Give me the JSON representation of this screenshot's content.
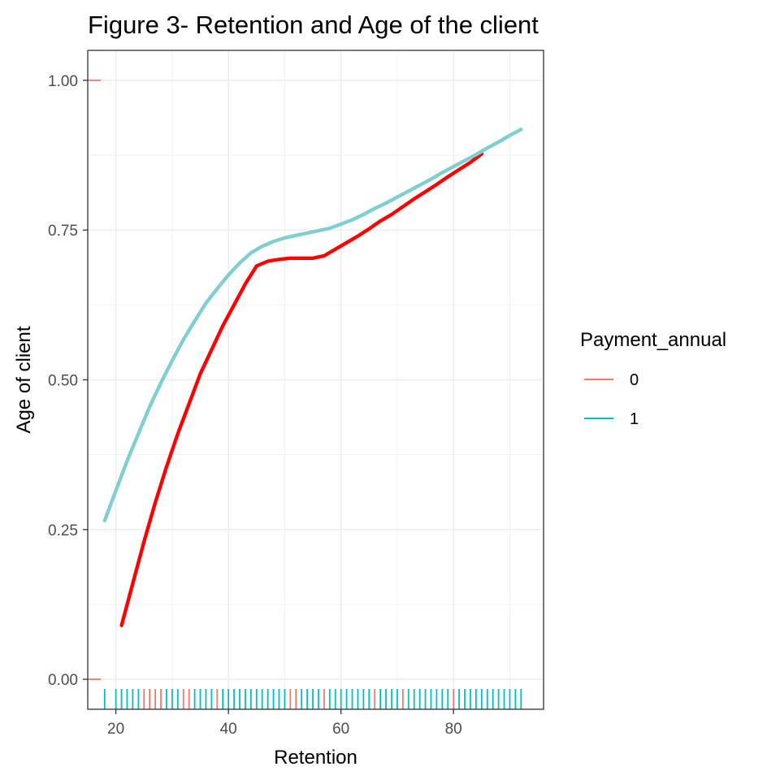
{
  "chart_data": {
    "type": "line",
    "title": "Figure 3- Retention and Age of the client",
    "xlabel": "Retention",
    "ylabel": "Age of client",
    "xlim": [
      15,
      96
    ],
    "ylim": [
      -0.05,
      1.05
    ],
    "x_ticks": [
      20,
      40,
      60,
      80
    ],
    "x_tick_labels": [
      "20",
      "40",
      "60",
      "80"
    ],
    "y_ticks": [
      0,
      0.25,
      0.5,
      0.75,
      1.0
    ],
    "y_tick_labels": [
      "0.00",
      "0.25",
      "0.50",
      "0.75",
      "1.00"
    ],
    "grid": true,
    "legend": {
      "title": "Payment_annual",
      "position": "right",
      "entries": [
        {
          "label": "0",
          "color": "#F8766D"
        },
        {
          "label": "1",
          "color": "#00BFC4"
        }
      ]
    },
    "series": [
      {
        "color": "#FF0000",
        "x": [
          21,
          23,
          25,
          27,
          29,
          31,
          33,
          35,
          37,
          39,
          41,
          43,
          45,
          47,
          49,
          51,
          53,
          55,
          57,
          59,
          61,
          63,
          65,
          67,
          69,
          71,
          73,
          75,
          77,
          79,
          81,
          83,
          85
        ],
        "y": [
          0.09,
          0.16,
          0.23,
          0.295,
          0.355,
          0.41,
          0.46,
          0.51,
          0.55,
          0.59,
          0.625,
          0.66,
          0.69,
          0.698,
          0.701,
          0.703,
          0.703,
          0.703,
          0.707,
          0.718,
          0.729,
          0.74,
          0.752,
          0.765,
          0.776,
          0.789,
          0.802,
          0.814,
          0.826,
          0.839,
          0.851,
          0.863,
          0.877
        ]
      },
      {
        "color": "#7FCFCF",
        "x": [
          18,
          20,
          22,
          24,
          26,
          28,
          30,
          32,
          34,
          36,
          38,
          40,
          42,
          44,
          46,
          48,
          50,
          52,
          54,
          56,
          58,
          60,
          62,
          64,
          66,
          68,
          70,
          72,
          74,
          76,
          78,
          80,
          82,
          84,
          86,
          88,
          90,
          92
        ],
        "y": [
          0.265,
          0.315,
          0.365,
          0.41,
          0.455,
          0.495,
          0.532,
          0.567,
          0.598,
          0.628,
          0.652,
          0.675,
          0.695,
          0.712,
          0.723,
          0.731,
          0.737,
          0.741,
          0.745,
          0.749,
          0.753,
          0.76,
          0.767,
          0.776,
          0.786,
          0.795,
          0.805,
          0.815,
          0.825,
          0.835,
          0.846,
          0.856,
          0.866,
          0.876,
          0.887,
          0.897,
          0.908,
          0.918
        ]
      }
    ],
    "rug_x": [
      {
        "x": 18,
        "g": "1"
      },
      {
        "x": 20,
        "g": "1"
      },
      {
        "x": 21,
        "g": "1"
      },
      {
        "x": 22,
        "g": "1"
      },
      {
        "x": 23,
        "g": "1"
      },
      {
        "x": 24,
        "g": "1"
      },
      {
        "x": 25,
        "g": "0"
      },
      {
        "x": 26,
        "g": "0"
      },
      {
        "x": 27,
        "g": "0"
      },
      {
        "x": 28,
        "g": "0"
      },
      {
        "x": 29,
        "g": "1"
      },
      {
        "x": 30,
        "g": "1"
      },
      {
        "x": 31,
        "g": "1"
      },
      {
        "x": 32,
        "g": "0"
      },
      {
        "x": 33,
        "g": "0"
      },
      {
        "x": 34,
        "g": "1"
      },
      {
        "x": 35,
        "g": "1"
      },
      {
        "x": 36,
        "g": "1"
      },
      {
        "x": 37,
        "g": "1"
      },
      {
        "x": 38,
        "g": "0"
      },
      {
        "x": 39,
        "g": "1"
      },
      {
        "x": 40,
        "g": "1"
      },
      {
        "x": 41,
        "g": "1"
      },
      {
        "x": 42,
        "g": "1"
      },
      {
        "x": 43,
        "g": "1"
      },
      {
        "x": 44,
        "g": "1"
      },
      {
        "x": 45,
        "g": "1"
      },
      {
        "x": 46,
        "g": "1"
      },
      {
        "x": 47,
        "g": "1"
      },
      {
        "x": 48,
        "g": "1"
      },
      {
        "x": 49,
        "g": "1"
      },
      {
        "x": 50,
        "g": "1"
      },
      {
        "x": 51,
        "g": "0"
      },
      {
        "x": 52,
        "g": "0"
      },
      {
        "x": 53,
        "g": "1"
      },
      {
        "x": 54,
        "g": "1"
      },
      {
        "x": 55,
        "g": "1"
      },
      {
        "x": 56,
        "g": "1"
      },
      {
        "x": 57,
        "g": "0"
      },
      {
        "x": 58,
        "g": "1"
      },
      {
        "x": 59,
        "g": "1"
      },
      {
        "x": 60,
        "g": "1"
      },
      {
        "x": 61,
        "g": "1"
      },
      {
        "x": 62,
        "g": "1"
      },
      {
        "x": 63,
        "g": "1"
      },
      {
        "x": 64,
        "g": "1"
      },
      {
        "x": 65,
        "g": "1"
      },
      {
        "x": 66,
        "g": "0"
      },
      {
        "x": 67,
        "g": "1"
      },
      {
        "x": 68,
        "g": "1"
      },
      {
        "x": 69,
        "g": "1"
      },
      {
        "x": 70,
        "g": "1"
      },
      {
        "x": 71,
        "g": "0"
      },
      {
        "x": 72,
        "g": "1"
      },
      {
        "x": 73,
        "g": "1"
      },
      {
        "x": 74,
        "g": "1"
      },
      {
        "x": 75,
        "g": "1"
      },
      {
        "x": 76,
        "g": "1"
      },
      {
        "x": 77,
        "g": "1"
      },
      {
        "x": 78,
        "g": "1"
      },
      {
        "x": 79,
        "g": "1"
      },
      {
        "x": 80,
        "g": "0"
      },
      {
        "x": 81,
        "g": "1"
      },
      {
        "x": 82,
        "g": "1"
      },
      {
        "x": 83,
        "g": "1"
      },
      {
        "x": 84,
        "g": "1"
      },
      {
        "x": 85,
        "g": "1"
      },
      {
        "x": 86,
        "g": "1"
      },
      {
        "x": 87,
        "g": "1"
      },
      {
        "x": 88,
        "g": "1"
      },
      {
        "x": 89,
        "g": "1"
      },
      {
        "x": 90,
        "g": "1"
      },
      {
        "x": 91,
        "g": "1"
      },
      {
        "x": 92,
        "g": "1"
      }
    ],
    "rug_y": [
      {
        "y": 1.0,
        "g": "0"
      },
      {
        "y": 0.0,
        "g": "0"
      }
    ]
  }
}
